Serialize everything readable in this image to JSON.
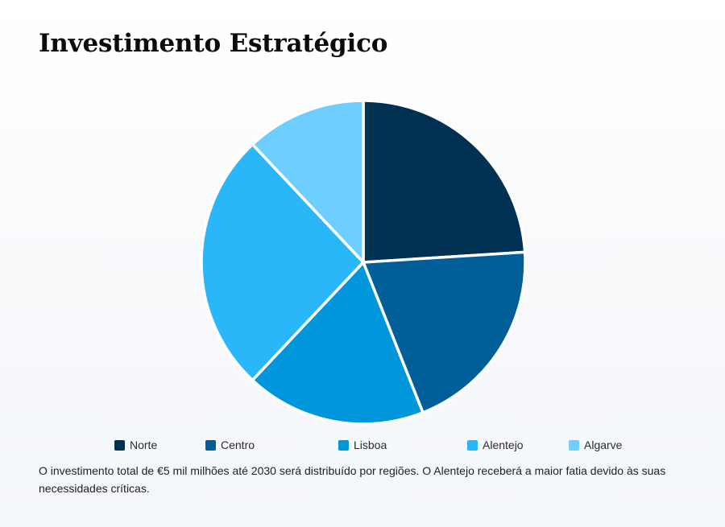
{
  "title": "Investimento Estratégico",
  "description": "O investimento total de €5 mil milhões até 2030 será distribuído por regiões. O Alentejo receberá a maior fatia devido às suas necessidades críticas.",
  "chart_data": {
    "type": "pie",
    "title": "Investimento Estratégico",
    "categories": [
      "Norte",
      "Centro",
      "Lisboa",
      "Alentejo",
      "Algarve"
    ],
    "values": [
      24,
      20,
      18,
      26,
      12
    ],
    "colors": [
      "#003153",
      "#005f99",
      "#0096dc",
      "#2ab7fa",
      "#6ecfff"
    ],
    "legend_position": "bottom",
    "start_angle": "top",
    "direction": "clockwise"
  }
}
